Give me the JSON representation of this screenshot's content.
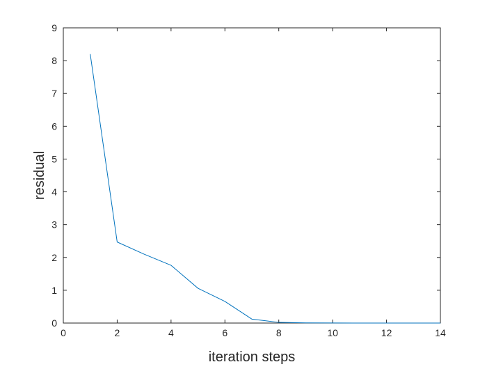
{
  "chart_data": {
    "type": "line",
    "title": "",
    "xlabel": "iteration steps",
    "ylabel": "residual",
    "xlim": [
      0,
      14
    ],
    "ylim": [
      0,
      9
    ],
    "xticks": [
      0,
      2,
      4,
      6,
      8,
      10,
      12,
      14
    ],
    "yticks": [
      0,
      1,
      2,
      3,
      4,
      5,
      6,
      7,
      8,
      9
    ],
    "grid": false,
    "legend": "none",
    "series": [
      {
        "color": "#0072bd",
        "x": [
          1,
          2,
          3,
          4,
          5,
          6,
          7,
          8,
          9,
          10,
          11,
          12,
          13,
          14
        ],
        "y": [
          8.2,
          2.47,
          2.1,
          1.76,
          1.06,
          0.66,
          0.12,
          0.02,
          0.005,
          0.002,
          0.001,
          0.001,
          0.001,
          0.001
        ]
      }
    ],
    "colors": {
      "axis": "#262626",
      "background": "#ffffff"
    }
  }
}
